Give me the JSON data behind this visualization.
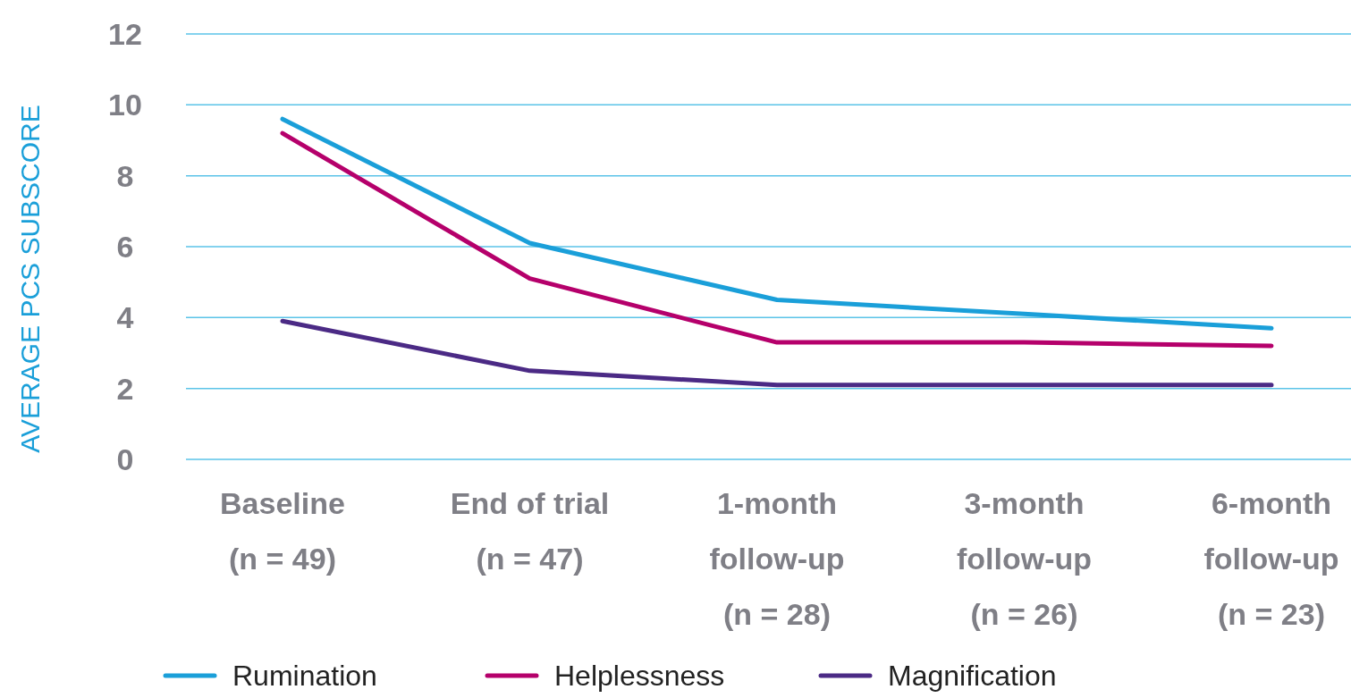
{
  "chart_data": {
    "type": "line",
    "ylabel": "AVERAGE PCS SUBSCORE",
    "categories": [
      "Baseline (n = 49)",
      "End of trial (n = 47)",
      "1-month follow-up (n = 28)",
      "3-month follow-up (n = 26)",
      "6-month follow-up (n = 23)"
    ],
    "series": [
      {
        "name": "Rumination",
        "color": "#1a9fd9",
        "values": [
          9.6,
          6.1,
          4.5,
          4.1,
          3.7
        ]
      },
      {
        "name": "Helplessness",
        "color": "#b5006b",
        "values": [
          9.2,
          5.1,
          3.3,
          3.3,
          3.2
        ]
      },
      {
        "name": "Magnification",
        "color": "#4b2a85",
        "values": [
          3.9,
          2.5,
          2.1,
          2.1,
          2.1
        ]
      }
    ],
    "ylim": [
      0,
      12
    ],
    "yticks": [
      0,
      2,
      4,
      6,
      8,
      10,
      12
    ],
    "grid": "y",
    "legend": "bottom",
    "marker": "none",
    "line_style": "solid"
  }
}
